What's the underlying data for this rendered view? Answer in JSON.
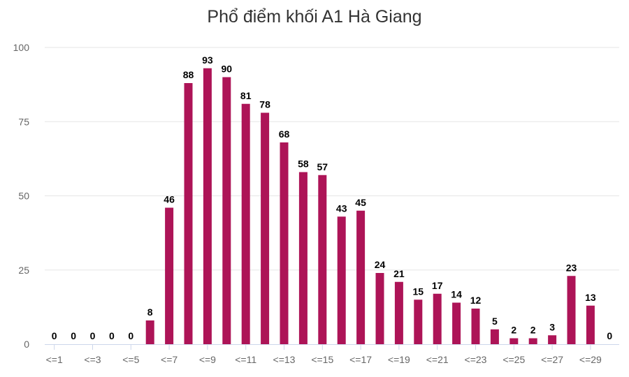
{
  "chart_data": {
    "type": "bar",
    "title": "Phổ điểm khối A1 Hà Giang",
    "xlabel": "",
    "ylabel": "",
    "ylim": [
      0,
      100
    ],
    "yticks": [
      0,
      25,
      50,
      75,
      100
    ],
    "grid": true,
    "color": "#ad1457",
    "categories": [
      "<=1",
      "<=2",
      "<=3",
      "<=4",
      "<=5",
      "<=6",
      "<=7",
      "<=8",
      "<=9",
      "<=10",
      "<=11",
      "<=12",
      "<=13",
      "<=14",
      "<=15",
      "<=16",
      "<=17",
      "<=18",
      "<=19",
      "<=20",
      "<=21",
      "<=22",
      "<=23",
      "<=24",
      "<=25",
      "<=26",
      "<=27",
      "<=28",
      "<=29",
      "<=30"
    ],
    "visible_x_tick_labels": [
      "<=1",
      "<=3",
      "<=5",
      "<=7",
      "<=9",
      "<=11",
      "<=13",
      "<=15",
      "<=17",
      "<=19",
      "<=21",
      "<=23",
      "<=25",
      "<=27",
      "<=29"
    ],
    "values": [
      0,
      0,
      0,
      0,
      0,
      8,
      46,
      88,
      93,
      90,
      81,
      78,
      68,
      58,
      57,
      43,
      45,
      24,
      21,
      15,
      17,
      14,
      12,
      5,
      2,
      2,
      3,
      23,
      13,
      0
    ]
  }
}
